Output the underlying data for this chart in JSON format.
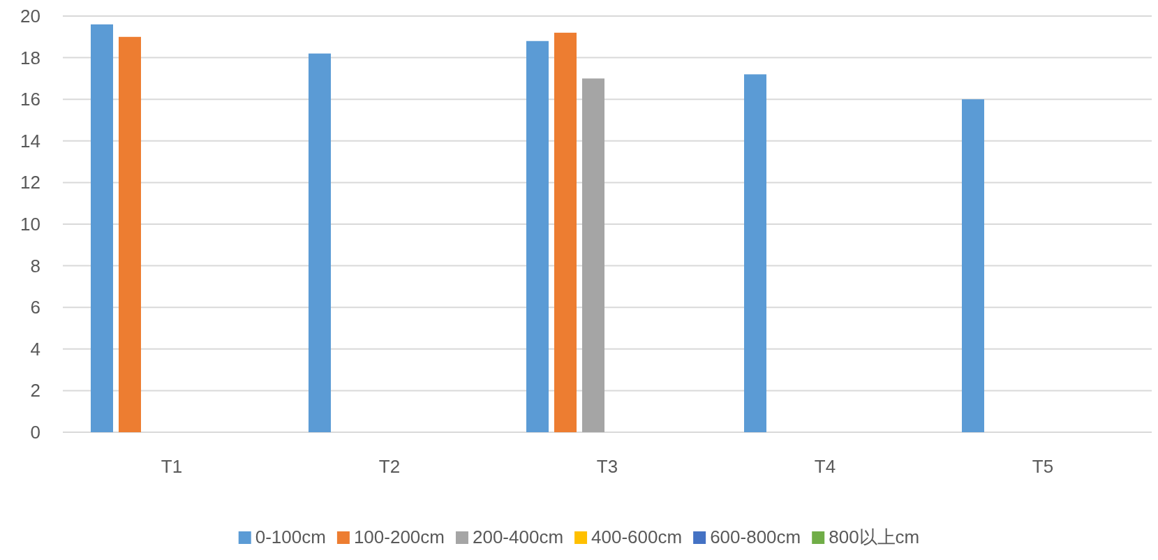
{
  "chart_data": {
    "type": "bar",
    "categories": [
      "T1",
      "T2",
      "T3",
      "T4",
      "T5"
    ],
    "series": [
      {
        "name": "0-100cm",
        "color": "#5b9bd5",
        "values": [
          19.6,
          18.2,
          18.8,
          17.2,
          16.0
        ]
      },
      {
        "name": "100-200cm",
        "color": "#ed7d31",
        "values": [
          19.0,
          null,
          19.2,
          null,
          null
        ]
      },
      {
        "name": "200-400cm",
        "color": "#a5a5a5",
        "values": [
          null,
          null,
          17.0,
          null,
          null
        ]
      },
      {
        "name": "400-600cm",
        "color": "#ffc000",
        "values": [
          null,
          null,
          null,
          null,
          null
        ]
      },
      {
        "name": "600-800cm",
        "color": "#4472c4",
        "values": [
          null,
          null,
          null,
          null,
          null
        ]
      },
      {
        "name": "800以上cm",
        "color": "#70ad47",
        "values": [
          null,
          null,
          null,
          null,
          null
        ]
      }
    ],
    "ylim": [
      0,
      20
    ],
    "yticks": [
      0,
      2,
      4,
      6,
      8,
      10,
      12,
      14,
      16,
      18,
      20
    ],
    "grid": "y",
    "legend": "bottom"
  }
}
